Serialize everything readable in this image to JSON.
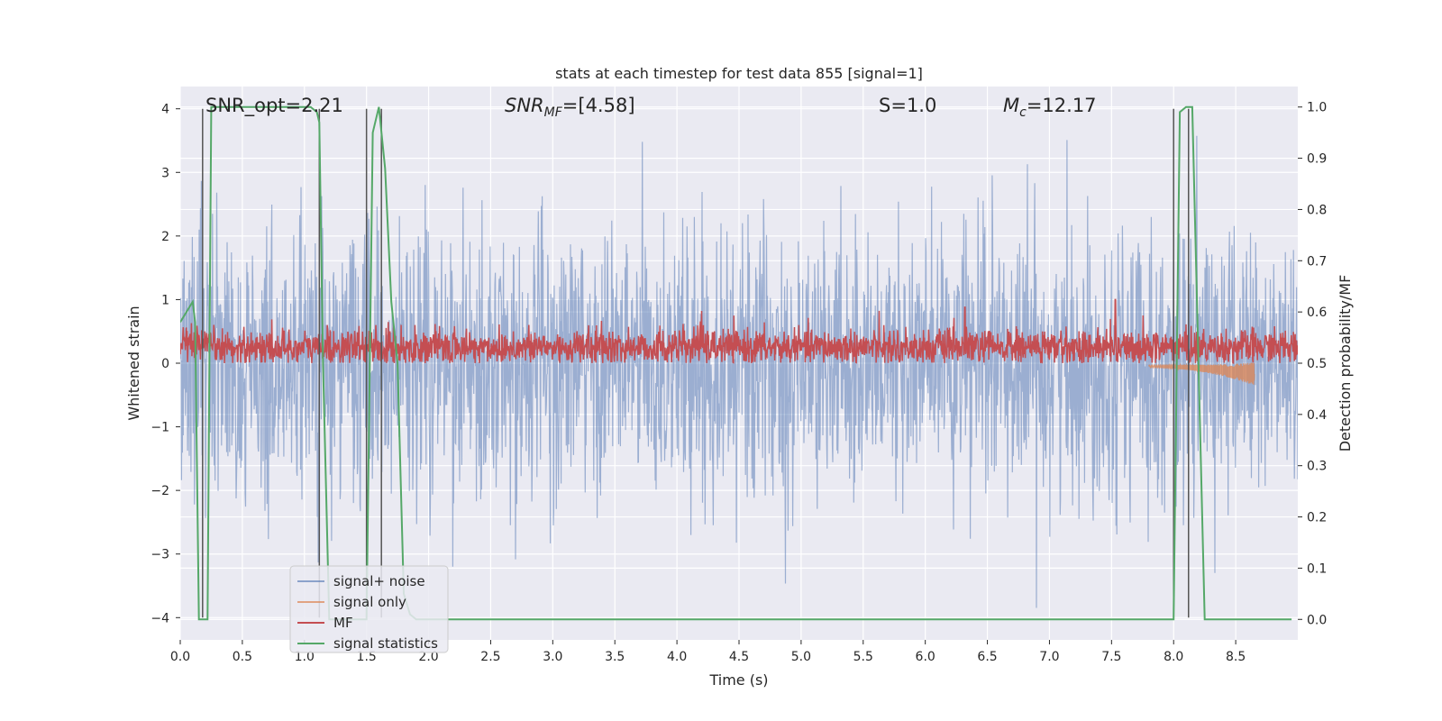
{
  "chart_data": {
    "type": "line",
    "title": "stats at each timestep for test data 855 [signal=1]",
    "xlabel": "Time (s)",
    "ylabel": "Whitened strain",
    "ylabel_right": "Detection probability/MF",
    "xlim": [
      0.0,
      9.0
    ],
    "ylim": [
      -4.35,
      4.35
    ],
    "ylim_right": [
      -0.04,
      1.04
    ],
    "x_ticks": [
      "0.0",
      "0.5",
      "1.0",
      "1.5",
      "2.0",
      "2.5",
      "3.0",
      "3.5",
      "4.0",
      "4.5",
      "5.0",
      "5.5",
      "6.0",
      "6.5",
      "7.0",
      "7.5",
      "8.0",
      "8.5"
    ],
    "y_ticks": [
      "4",
      "3",
      "2",
      "1",
      "0",
      "−1",
      "−2",
      "−3",
      "−4"
    ],
    "y_right_ticks": [
      "1.0",
      "0.9",
      "0.8",
      "0.7",
      "0.6",
      "0.5",
      "0.4",
      "0.3",
      "0.2",
      "0.1",
      "0.0"
    ],
    "grid": true,
    "legend_position": "lower-left",
    "annotations": [
      {
        "base": "SNR_opt=2.21",
        "sub": "",
        "tail": ""
      },
      {
        "base": "SNR",
        "sub": "MF",
        "tail": "=[4.58]"
      },
      {
        "base": "S",
        "sub": "",
        "tail": "=1.0"
      },
      {
        "base": "M",
        "sub": "c",
        "tail": "=12.17"
      }
    ],
    "colors": {
      "signal_noise": "#4c72b0",
      "signal_only": "#dd8452",
      "mf": "#c44e52",
      "statistics": "#55a868",
      "vlines": "#555555",
      "plot_bg": "#eaeaf2",
      "grid": "#ffffff"
    },
    "series": [
      {
        "name": "signal+ noise",
        "type": "noise-band",
        "envelope_typical": 1.6,
        "max_abs": 4.0
      },
      {
        "name": "signal only",
        "type": "chirp",
        "x_start": 7.8,
        "x_end": 8.65,
        "y_end": -0.35
      },
      {
        "name": "MF",
        "type": "noise-band",
        "mean": 0.25,
        "max": 1.0
      },
      {
        "name": "signal statistics",
        "axis": "right",
        "x": [
          0.0,
          0.05,
          0.1,
          0.12,
          0.15,
          0.2,
          0.22,
          0.25,
          0.3,
          1.0,
          1.05,
          1.1,
          1.12,
          1.15,
          1.2,
          1.25,
          1.3,
          1.5,
          1.55,
          1.6,
          1.65,
          1.7,
          1.75,
          1.8,
          1.85,
          1.9,
          2.0,
          2.2,
          2.4,
          2.5,
          7.6,
          7.95,
          8.0,
          8.05,
          8.1,
          8.15,
          8.2,
          8.25,
          8.3,
          8.95
        ],
        "y": [
          0.58,
          0.6,
          0.62,
          0.58,
          0.0,
          0.0,
          0.0,
          1.0,
          1.0,
          1.0,
          1.0,
          0.99,
          0.97,
          0.5,
          0.0,
          0.0,
          0.0,
          0.0,
          0.95,
          1.0,
          0.88,
          0.62,
          0.5,
          0.05,
          0.01,
          0.0,
          0.0,
          0.0,
          0.0,
          0.0,
          0.0,
          0.0,
          0.0,
          0.99,
          1.0,
          1.0,
          0.5,
          0.0,
          0.0,
          0.0
        ]
      }
    ],
    "vlines": [
      0.18,
      1.12,
      1.5,
      1.62,
      8.0,
      8.12
    ]
  }
}
